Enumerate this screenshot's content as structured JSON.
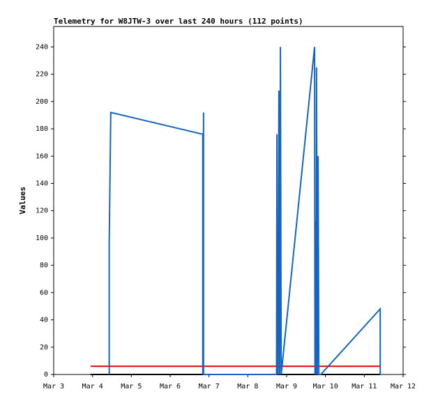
{
  "chart_data": {
    "type": "line",
    "title": "Telemetry for W8JTW-3 over last 240 hours (112 points)",
    "y_label": "Values",
    "xlim": [
      3,
      12
    ],
    "xticks": [
      {
        "value": 3,
        "label": "Mar 3"
      },
      {
        "value": 4,
        "label": "Mar 4"
      },
      {
        "value": 5,
        "label": "Mar 5"
      },
      {
        "value": 6,
        "label": "Mar 6"
      },
      {
        "value": 7,
        "label": "Mar 7"
      },
      {
        "value": 8,
        "label": "Mar 8"
      },
      {
        "value": 9,
        "label": "Mar 9"
      },
      {
        "value": 10,
        "label": "Mar 10"
      },
      {
        "value": 11,
        "label": "Mar 11"
      },
      {
        "value": 12,
        "label": "Mar 12"
      }
    ],
    "ylim": [
      0,
      255
    ],
    "yticks": [
      0,
      20,
      40,
      60,
      80,
      100,
      120,
      140,
      160,
      180,
      200,
      220,
      240
    ],
    "grid": false,
    "series": [
      {
        "color": "#000000",
        "x": [
          3.95,
          11.41
        ],
        "values": [
          0,
          0
        ]
      },
      {
        "color": "#e00000",
        "x": [
          3.95,
          11.41
        ],
        "values": [
          6,
          6
        ]
      },
      {
        "color": "#1565c0",
        "x": [
          4.43,
          4.43,
          4.47,
          6.84,
          6.84,
          6.86,
          6.86,
          8.74,
          8.75,
          8.76,
          8.77,
          8.78,
          8.8,
          8.82,
          8.84,
          8.86,
          9.72,
          9.73,
          9.75,
          9.76,
          9.77,
          9.79,
          9.81,
          9.83,
          9.88,
          11.41,
          11.41
        ],
        "values": [
          0,
          96,
          192,
          176,
          0,
          192,
          0,
          0,
          176,
          0,
          88,
          0,
          208,
          0,
          240,
          0,
          240,
          0,
          112,
          0,
          225,
          0,
          160,
          0,
          0,
          48,
          0
        ]
      }
    ]
  }
}
